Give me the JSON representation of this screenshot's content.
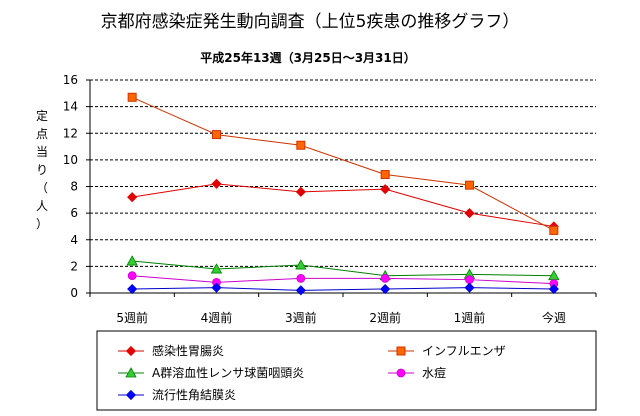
{
  "chart_data": {
    "type": "line",
    "title": "京都府感染症発生動向調査（上位5疾患の推移グラフ）",
    "subtitle": "平成25年13週（3月25日～3月31日）",
    "ylabel_chars": [
      "定",
      "点",
      "当",
      "り",
      "（",
      "人",
      "）"
    ],
    "xlabel": "",
    "categories": [
      "5週前",
      "4週前",
      "3週前",
      "2週前",
      "1週前",
      "今週"
    ],
    "ylim": [
      0,
      16
    ],
    "yticks": [
      0,
      2,
      4,
      6,
      8,
      10,
      12,
      14,
      16
    ],
    "grid": true,
    "legend_position": "bottom",
    "series": [
      {
        "name": "感染性胃腸炎",
        "values": [
          7.2,
          8.2,
          7.6,
          7.8,
          6.0,
          5.0
        ],
        "color": "#e00000",
        "marker": "diamond"
      },
      {
        "name": "インフルエンザ",
        "values": [
          14.7,
          11.9,
          11.1,
          8.9,
          8.1,
          4.7
        ],
        "color": "#cc3300",
        "marker_fill": "#ff6600",
        "marker": "square"
      },
      {
        "name": "A群溶血性レンサ球菌咽頭炎",
        "values": [
          2.4,
          1.8,
          2.1,
          1.3,
          1.4,
          1.3
        ],
        "color": "#008000",
        "marker_fill": "#33cc33",
        "marker": "triangle"
      },
      {
        "name": "水痘",
        "values": [
          1.3,
          0.8,
          1.1,
          1.1,
          1.0,
          0.7
        ],
        "color": "#cc00cc",
        "marker_fill": "#ff00ff",
        "marker": "circle"
      },
      {
        "name": "流行性角結膜炎",
        "values": [
          0.3,
          0.4,
          0.2,
          0.3,
          0.4,
          0.3
        ],
        "color": "#0000cc",
        "marker_fill": "#0000ff",
        "marker": "diamond"
      }
    ]
  }
}
